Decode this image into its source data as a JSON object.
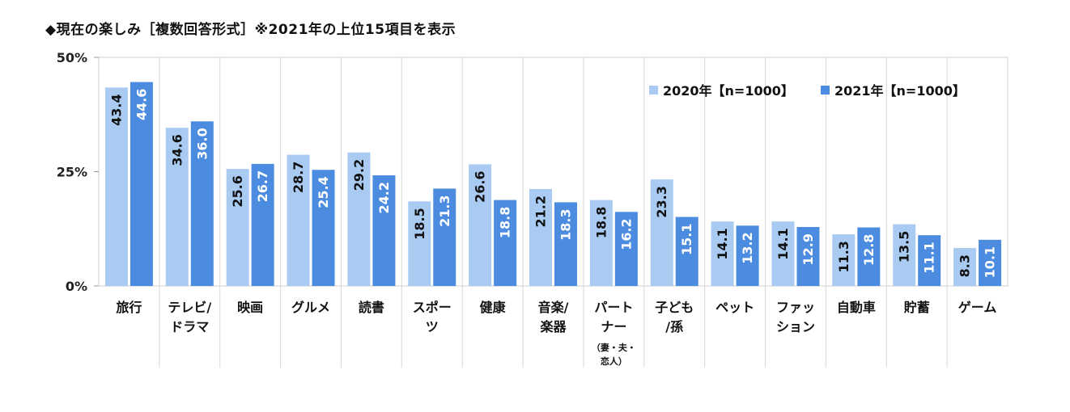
{
  "title": "◆現在の楽しみ［複数回答形式］※2021年の上位15項目を表示",
  "chart_data": {
    "type": "bar",
    "categories": [
      [
        "旅行"
      ],
      [
        "テレビ/",
        "ドラマ"
      ],
      [
        "映画"
      ],
      [
        "グルメ"
      ],
      [
        "読書"
      ],
      [
        "スポー",
        "ツ"
      ],
      [
        "健康"
      ],
      [
        "音楽/",
        "楽器"
      ],
      [
        "パート",
        "ナー",
        "（妻・夫・",
        "恋人）"
      ],
      [
        "子ども",
        "/孫"
      ],
      [
        "ペット"
      ],
      [
        "ファッ",
        "ション"
      ],
      [
        "自動車"
      ],
      [
        "貯蓄"
      ],
      [
        "ゲーム"
      ]
    ],
    "series": [
      {
        "name": "2020年【n=1000】",
        "color": "#a9cbf2",
        "values": [
          43.4,
          34.6,
          25.6,
          28.7,
          29.2,
          18.5,
          26.6,
          21.2,
          18.8,
          23.3,
          14.1,
          14.1,
          11.3,
          13.5,
          8.3
        ]
      },
      {
        "name": "2021年【n=1000】",
        "color": "#4c8ce0",
        "values": [
          44.6,
          36.0,
          26.7,
          25.4,
          24.2,
          21.3,
          18.8,
          18.3,
          16.2,
          15.1,
          13.2,
          12.9,
          12.8,
          11.1,
          10.1
        ]
      }
    ],
    "ylim": [
      0,
      50
    ],
    "yticks": [
      0,
      25,
      50
    ],
    "ytick_labels": [
      "0%",
      "25%",
      "50%"
    ],
    "legend_position": "top-right",
    "grid": "vertical separators",
    "data_label_orientation": "vertical"
  }
}
